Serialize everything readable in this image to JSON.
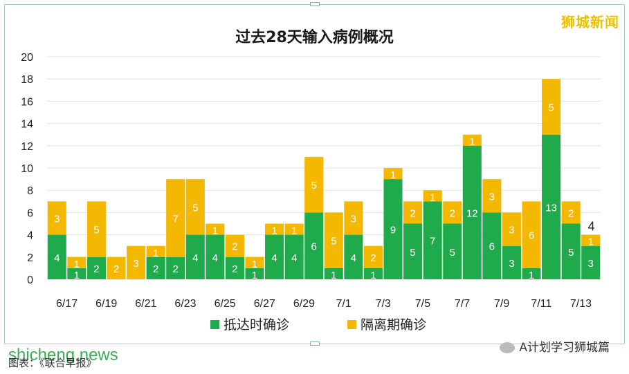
{
  "brand": "狮城新闻",
  "caption": "图表：《联合早报》",
  "watermark": "shicheng.news",
  "wechat_label": "A计划学习狮城篇",
  "colors": {
    "arrival": "#1faa4b",
    "quarantine": "#f5b800"
  },
  "chart_data": {
    "type": "bar",
    "stacked": true,
    "title": "过去28天输入病例概况",
    "categories": [
      "6/17",
      "6/18",
      "6/19",
      "6/20",
      "6/21",
      "6/22",
      "6/23",
      "6/24",
      "6/25",
      "6/26",
      "6/27",
      "6/28",
      "6/29",
      "6/30",
      "7/1",
      "7/2",
      "7/3",
      "7/4",
      "7/5",
      "7/6",
      "7/7",
      "7/8",
      "7/9",
      "7/10",
      "7/11",
      "7/12",
      "7/13",
      "7/14"
    ],
    "tick_labels": [
      "6/17",
      "6/19",
      "6/21",
      "6/23",
      "6/25",
      "6/27",
      "6/29",
      "7/1",
      "7/3",
      "7/5",
      "7/7",
      "7/9",
      "7/11",
      "7/13"
    ],
    "series": [
      {
        "name": "抵达时确诊",
        "values": [
          4,
          1,
          2,
          0,
          0,
          2,
          2,
          4,
          4,
          2,
          1,
          4,
          4,
          6,
          1,
          4,
          1,
          9,
          5,
          7,
          5,
          12,
          6,
          3,
          1,
          13,
          5,
          3
        ]
      },
      {
        "name": "隔离期确诊",
        "values": [
          3,
          1,
          5,
          2,
          3,
          1,
          7,
          5,
          1,
          2,
          1,
          1,
          1,
          5,
          5,
          3,
          2,
          1,
          2,
          1,
          2,
          1,
          3,
          3,
          6,
          5,
          2,
          1
        ]
      }
    ],
    "ylim": [
      0,
      20
    ],
    "yticks": [
      0,
      2,
      4,
      6,
      8,
      10,
      12,
      14,
      16,
      18,
      20
    ],
    "grid": true,
    "legend": "bottom"
  }
}
